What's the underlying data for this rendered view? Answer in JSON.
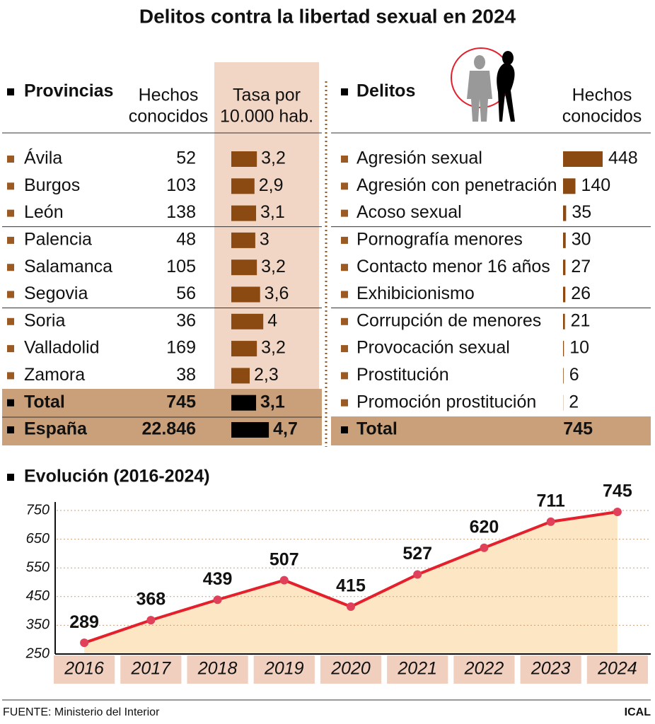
{
  "title": "Delitos contra la libertad sexual en 2024",
  "provinces": {
    "heading": "Provincias",
    "col_hechos": [
      "Hechos",
      "conocidos"
    ],
    "col_tasa": [
      "Tasa por",
      "10.000 hab."
    ],
    "rows": [
      {
        "name": "Ávila",
        "hechos": 52,
        "tasa": 3.2,
        "tasa_label": "3,2"
      },
      {
        "name": "Burgos",
        "hechos": 103,
        "tasa": 2.9,
        "tasa_label": "2,9"
      },
      {
        "name": "León",
        "hechos": 138,
        "tasa": 3.1,
        "tasa_label": "3,1"
      },
      {
        "name": "Palencia",
        "hechos": 48,
        "tasa": 3,
        "tasa_label": "3"
      },
      {
        "name": "Salamanca",
        "hechos": 105,
        "tasa": 3.2,
        "tasa_label": "3,2"
      },
      {
        "name": "Segovia",
        "hechos": 56,
        "tasa": 3.6,
        "tasa_label": "3,6"
      },
      {
        "name": "Soria",
        "hechos": 36,
        "tasa": 4,
        "tasa_label": "4"
      },
      {
        "name": "Valladolid",
        "hechos": 169,
        "tasa": 3.2,
        "tasa_label": "3,2"
      },
      {
        "name": "Zamora",
        "hechos": 38,
        "tasa": 2.3,
        "tasa_label": "2,3"
      }
    ],
    "total": {
      "name": "Total",
      "hechos": 745,
      "tasa": 3.1,
      "tasa_label": "3,1"
    },
    "spain": {
      "name": "España",
      "hechos": 22846,
      "hechos_label": "22.846",
      "tasa": 4.7,
      "tasa_label": "4,7"
    }
  },
  "crimes": {
    "heading": "Delitos",
    "col_hechos": [
      "Hechos",
      "conocidos"
    ],
    "rows": [
      {
        "name": "Agresión sexual",
        "hechos": 448
      },
      {
        "name": "Agresión con penetración",
        "hechos": 140
      },
      {
        "name": "Acoso sexual",
        "hechos": 35
      },
      {
        "name": "Pornografía menores",
        "hechos": 30
      },
      {
        "name": "Contacto menor 16 años",
        "hechos": 27
      },
      {
        "name": "Exhibicionismo",
        "hechos": 26
      },
      {
        "name": "Corrupción de menores",
        "hechos": 21
      },
      {
        "name": "Provocación sexual",
        "hechos": 10
      },
      {
        "name": "Prostitución",
        "hechos": 6
      },
      {
        "name": "Promoción prostitución",
        "hechos": 2
      }
    ],
    "total": {
      "name": "Total",
      "hechos": 745
    }
  },
  "chart_data": {
    "type": "line",
    "title": "Evolución (2016-2024)",
    "categories": [
      "2016",
      "2017",
      "2018",
      "2019",
      "2020",
      "2021",
      "2022",
      "2023",
      "2024"
    ],
    "values": [
      289,
      368,
      439,
      507,
      415,
      527,
      620,
      711,
      745
    ],
    "color": "#e3202b",
    "ylim": [
      250,
      750
    ],
    "yticks": [
      250,
      350,
      450,
      550,
      650,
      750
    ],
    "grid": true
  },
  "source": "FUENTE: Ministerio del Interior",
  "credit": "ICAL"
}
